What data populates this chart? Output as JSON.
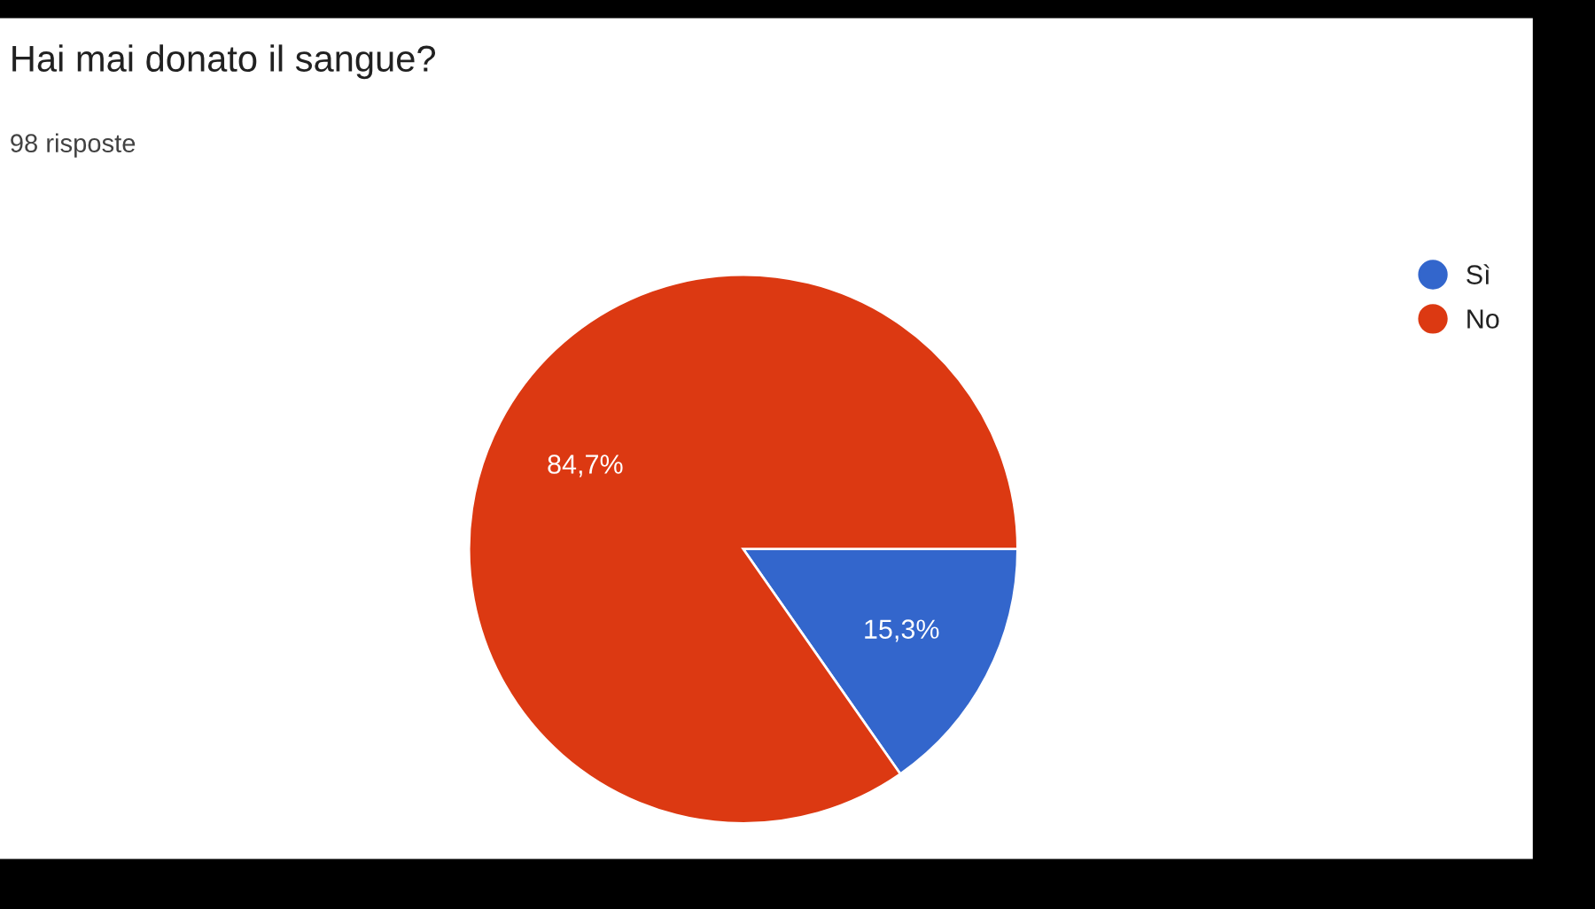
{
  "chart_data": {
    "type": "pie",
    "title": "Hai mai donato il sangue?",
    "subtitle": "98 risposte",
    "categories": [
      "Sì",
      "No"
    ],
    "values": [
      15.3,
      84.7
    ],
    "colors": [
      "#3366cc",
      "#dc3912"
    ],
    "value_labels": [
      "15,3%",
      "84,7%"
    ],
    "legend": "top right"
  }
}
